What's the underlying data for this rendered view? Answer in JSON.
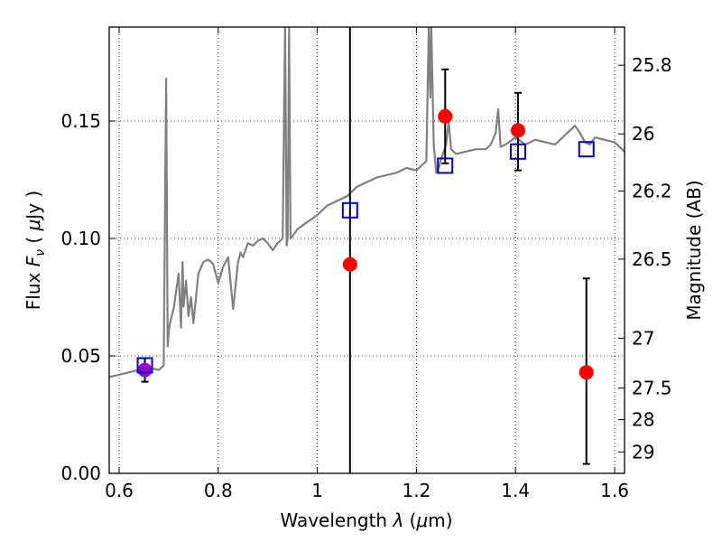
{
  "chart_data": {
    "type": "scatter",
    "title": "",
    "xlabel": {
      "prefix": "Wavelength  ",
      "symbol": "λ",
      "unit_open": " (",
      "unit_mu": "μ",
      "unit_rest": "m)"
    },
    "ylabel": {
      "prefix": "Flux  ",
      "symbol": "F",
      "subscript": "ν",
      "unit_open": "  ( ",
      "unit_mu": "μ",
      "unit_rest": "Jy )"
    },
    "y2label": "Magnitude (AB)",
    "xlim": [
      0.58,
      1.62
    ],
    "ylim": [
      0.0,
      0.19
    ],
    "grid": true,
    "x_ticks": [
      {
        "value": 0.6,
        "label": "0.6"
      },
      {
        "value": 0.8,
        "label": "0.8"
      },
      {
        "value": 1.0,
        "label": "1"
      },
      {
        "value": 1.2,
        "label": "1.2"
      },
      {
        "value": 1.4,
        "label": "1.4"
      },
      {
        "value": 1.6,
        "label": "1.6"
      }
    ],
    "y_ticks": [
      {
        "value": 0.0,
        "label": "0.00"
      },
      {
        "value": 0.05,
        "label": "0.05"
      },
      {
        "value": 0.1,
        "label": "0.10"
      },
      {
        "value": 0.15,
        "label": "0.15"
      }
    ],
    "y2_ticks": [
      {
        "value": 25.8,
        "label": "25.8"
      },
      {
        "value": 26.0,
        "label": "26"
      },
      {
        "value": 26.2,
        "label": "26.2"
      },
      {
        "value": 26.5,
        "label": "26.5"
      },
      {
        "value": 27.0,
        "label": "27"
      },
      {
        "value": 27.5,
        "label": "27.5"
      },
      {
        "value": 28.0,
        "label": "28"
      },
      {
        "value": 29.0,
        "label": "29"
      }
    ],
    "vertical_line": {
      "x": 1.066,
      "color": "#000000"
    },
    "template_spectrum": {
      "color": "#808080",
      "x": [
        0.58,
        0.6,
        0.62,
        0.64,
        0.66,
        0.68,
        0.69,
        0.695,
        0.698,
        0.7,
        0.702,
        0.705,
        0.71,
        0.72,
        0.725,
        0.728,
        0.73,
        0.735,
        0.74,
        0.745,
        0.75,
        0.76,
        0.77,
        0.78,
        0.79,
        0.8,
        0.81,
        0.82,
        0.83,
        0.84,
        0.845,
        0.85,
        0.86,
        0.87,
        0.88,
        0.89,
        0.9,
        0.91,
        0.92,
        0.93,
        0.935,
        0.938,
        0.94,
        0.943,
        0.946,
        0.95,
        0.96,
        0.98,
        1.0,
        1.02,
        1.04,
        1.06,
        1.08,
        1.1,
        1.12,
        1.14,
        1.16,
        1.18,
        1.2,
        1.21,
        1.22,
        1.225,
        1.228,
        1.23,
        1.235,
        1.24,
        1.245,
        1.25,
        1.26,
        1.265,
        1.27,
        1.28,
        1.3,
        1.32,
        1.34,
        1.35,
        1.36,
        1.365,
        1.37,
        1.38,
        1.4,
        1.42,
        1.44,
        1.46,
        1.48,
        1.5,
        1.52,
        1.53,
        1.54,
        1.55,
        1.56,
        1.58,
        1.6,
        1.62
      ],
      "y": [
        0.041,
        0.042,
        0.043,
        0.044,
        0.045,
        0.044,
        0.046,
        0.168,
        0.054,
        0.06,
        0.063,
        0.066,
        0.07,
        0.085,
        0.062,
        0.09,
        0.071,
        0.082,
        0.067,
        0.075,
        0.064,
        0.085,
        0.09,
        0.091,
        0.089,
        0.081,
        0.088,
        0.092,
        0.07,
        0.09,
        0.094,
        0.092,
        0.098,
        0.097,
        0.099,
        0.1,
        0.098,
        0.095,
        0.098,
        0.1,
        0.19,
        0.097,
        0.1,
        0.19,
        0.1,
        0.101,
        0.104,
        0.107,
        0.11,
        0.114,
        0.116,
        0.118,
        0.122,
        0.124,
        0.126,
        0.127,
        0.128,
        0.13,
        0.129,
        0.131,
        0.133,
        0.19,
        0.16,
        0.19,
        0.14,
        0.128,
        0.13,
        0.134,
        0.14,
        0.15,
        0.138,
        0.136,
        0.137,
        0.138,
        0.138,
        0.14,
        0.145,
        0.155,
        0.139,
        0.14,
        0.143,
        0.14,
        0.142,
        0.141,
        0.14,
        0.144,
        0.148,
        0.145,
        0.141,
        0.14,
        0.143,
        0.142,
        0.141,
        0.137
      ]
    },
    "measured_points": {
      "color": "#ff0000",
      "x": [
        1.066,
        1.258,
        1.405,
        1.543
      ],
      "y": [
        0.089,
        0.152,
        0.146,
        0.043
      ],
      "err_low": [
        null,
        0.132,
        0.129,
        0.004
      ],
      "err_high": [
        null,
        0.172,
        0.162,
        0.083
      ]
    },
    "special_point": {
      "color": "#9900cc",
      "x": 0.652,
      "y": 0.044,
      "err_low": 0.039,
      "err_high": 0.049
    },
    "model_squares": {
      "color": "#0000cc",
      "x": [
        0.652,
        1.066,
        1.258,
        1.405,
        1.543
      ],
      "y": [
        0.046,
        0.112,
        0.131,
        0.137,
        0.138
      ]
    }
  }
}
